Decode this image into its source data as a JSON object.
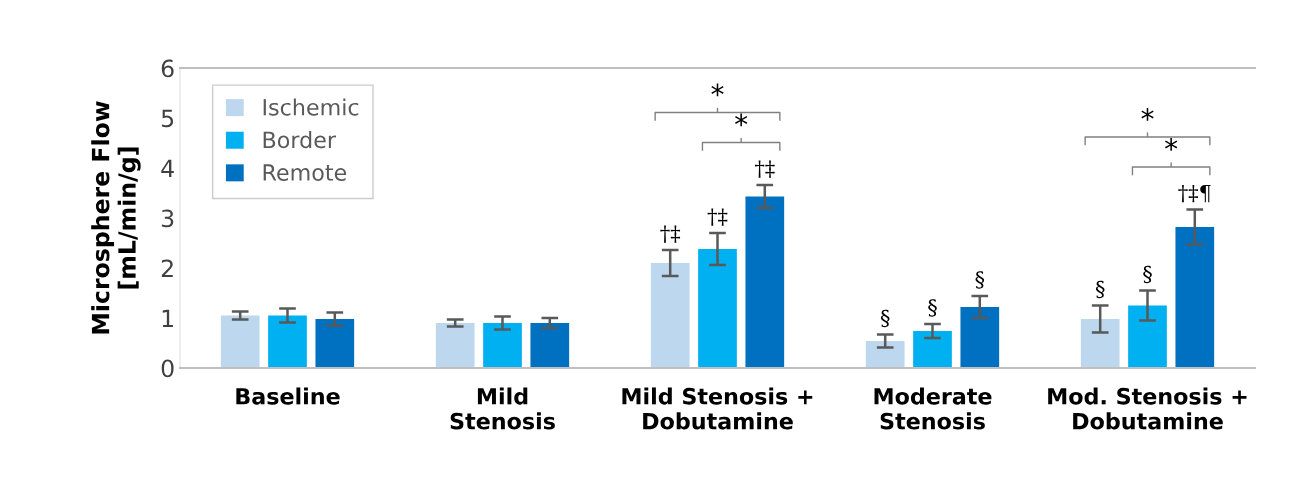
{
  "chart_data": {
    "type": "bar",
    "ylabel": "Microsphere Flow\n[mL/min/g]",
    "categories": [
      "Baseline",
      "Mild\nStenosis",
      "Mild Stenosis +\nDobutamine",
      "Moderate\nStenosis",
      "Mod. Stenosis +\nDobutamine"
    ],
    "series": [
      {
        "name": "Ischemic",
        "color": "#bdd7ee",
        "values": [
          1.05,
          0.9,
          2.1,
          0.54,
          0.98
        ],
        "errors": [
          0.08,
          0.07,
          0.26,
          0.13,
          0.27
        ],
        "value_labels": [
          null,
          null,
          "†‡",
          "§",
          "§"
        ]
      },
      {
        "name": "Border",
        "color": "#00b0f0",
        "values": [
          1.05,
          0.9,
          2.38,
          0.74,
          1.25
        ],
        "errors": [
          0.14,
          0.13,
          0.32,
          0.14,
          0.3
        ],
        "value_labels": [
          null,
          null,
          "†‡",
          "§",
          "§"
        ]
      },
      {
        "name": "Remote",
        "color": "#0070c0",
        "values": [
          0.98,
          0.9,
          3.43,
          1.22,
          2.82
        ],
        "errors": [
          0.13,
          0.1,
          0.23,
          0.22,
          0.35
        ],
        "value_labels": [
          null,
          null,
          "†‡",
          "§",
          "†‡¶"
        ]
      }
    ],
    "annotations": [
      "*",
      "*",
      "*",
      "*"
    ],
    "ylim": [
      0,
      6
    ],
    "yticks": [
      0,
      1,
      2,
      3,
      4,
      5,
      6
    ],
    "grid": false,
    "legend": "top left"
  }
}
